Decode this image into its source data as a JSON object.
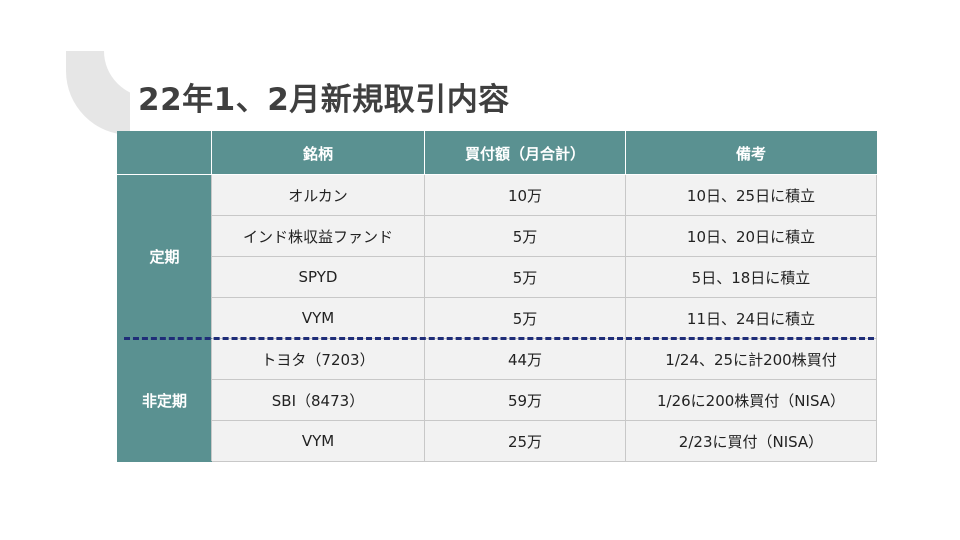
{
  "title": "22年1、2月新規取引内容",
  "headers": [
    "",
    "銘柄",
    "買付額（月合計）",
    "備考"
  ],
  "groups": [
    {
      "label": "定期",
      "rows": [
        {
          "name": "オルカン",
          "amount": "10万",
          "note": "10日、25日に積立"
        },
        {
          "name": "インド株収益ファンド",
          "amount": "5万",
          "note": "10日、20日に積立"
        },
        {
          "name": "SPYD",
          "amount": "5万",
          "note": "5日、18日に積立"
        },
        {
          "name": "VYM",
          "amount": "5万",
          "note": "11日、24日に積立"
        }
      ]
    },
    {
      "label": "非定期",
      "rows": [
        {
          "name": "トヨタ（7203）",
          "amount": "44万",
          "note": "1/24、25に計200株買付"
        },
        {
          "name": "SBI（8473）",
          "amount": "59万",
          "note": "1/26に200株買付（NISA）"
        },
        {
          "name": "VYM",
          "amount": "25万",
          "note": "2/23に買付（NISA）"
        }
      ]
    }
  ],
  "colors": {
    "header_bg": "#5a9191",
    "divider": "#1f2d78",
    "title": "#3f3f3f"
  }
}
